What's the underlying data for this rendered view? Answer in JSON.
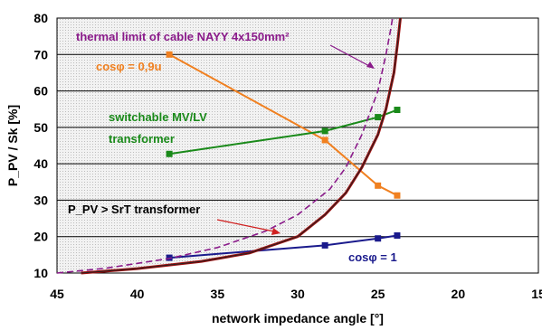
{
  "chart_data": {
    "type": "line",
    "xlabel": "network impedance angle [°]",
    "ylabel": "P_PV / Sk [%]",
    "xlim": [
      45,
      15
    ],
    "ylim": [
      10,
      80
    ],
    "x_ticks": [
      "45",
      "40",
      "35",
      "30",
      "25",
      "20",
      "15"
    ],
    "y_ticks": [
      "10",
      "20",
      "30",
      "40",
      "50",
      "60",
      "70",
      "80"
    ],
    "grid": "horizontal",
    "shaded_region": "above red curve (hatched grey)",
    "series": [
      {
        "name": "cosφ = 0,9u",
        "color": "#f08020",
        "style": "line-square-markers",
        "x": [
          38,
          28.3,
          25,
          23.8
        ],
        "y": [
          70,
          46.5,
          34,
          31.3
        ]
      },
      {
        "name": "switchable MV/LV transformer",
        "color": "#1a8a1a",
        "style": "line-square-markers",
        "x": [
          38,
          28.3,
          25,
          23.8
        ],
        "y": [
          42.7,
          49,
          52.8,
          54.8
        ]
      },
      {
        "name": "cosφ = 1",
        "color": "#1a1a8c",
        "style": "line-square-markers",
        "x": [
          38,
          28.3,
          25,
          23.8
        ],
        "y": [
          14.2,
          17.6,
          19.5,
          20.3
        ]
      },
      {
        "name": "P_PV > SrT transformer",
        "color": "#a01010",
        "style": "curve",
        "x": [
          43.5,
          40,
          36,
          33,
          30,
          28.3,
          27,
          26,
          25,
          24.5,
          24,
          23.75,
          23.6
        ],
        "y": [
          10,
          11.2,
          13.2,
          15.5,
          20,
          26,
          32,
          39,
          48,
          55,
          65,
          74,
          80
        ]
      },
      {
        "name": "thermal limit of cable NAYY 4x150mm²",
        "color": "#8a1a8a",
        "style": "dashed",
        "x": [
          45,
          42,
          38,
          35,
          32,
          30,
          28,
          27,
          26,
          25,
          24.5,
          24.2,
          24.05
        ],
        "y": [
          10,
          11.3,
          14,
          17,
          21.5,
          26,
          33,
          39,
          48,
          60,
          70,
          77,
          81
        ]
      }
    ],
    "annotations": [
      {
        "text": "thermal limit of cable  NAYY 4x150mm²",
        "color": "#8a1a8a"
      },
      {
        "text": "cosφ = 0,9u",
        "color": "#f08020"
      },
      {
        "text": "switchable MV/LV",
        "color": "#1a8a1a"
      },
      {
        "text": "transformer",
        "color": "#1a8a1a"
      },
      {
        "text": "P_PV > SrT transformer",
        "color": "#000000"
      },
      {
        "text": "cosφ = 1",
        "color": "#1a1a8c"
      }
    ]
  }
}
